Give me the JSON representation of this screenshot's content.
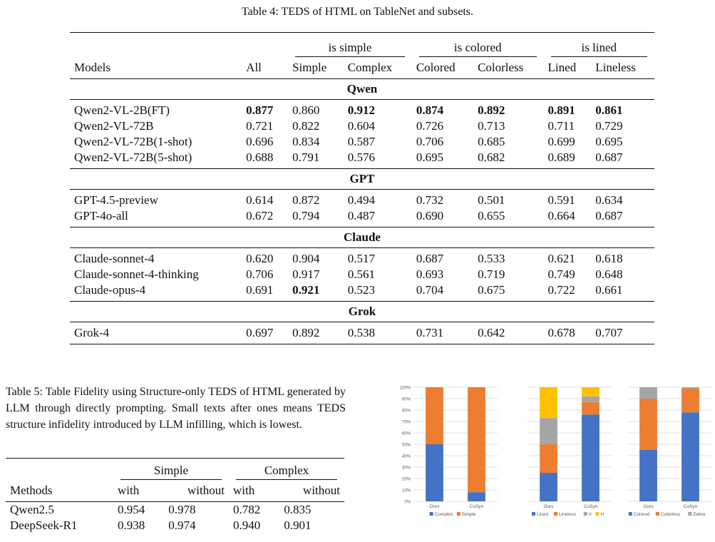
{
  "table4": {
    "caption": "Table 4: TEDS of HTML on TableNet and subsets.",
    "group_headers": [
      "is simple",
      "is colored",
      "is lined"
    ],
    "columns": [
      "Models",
      "All",
      "Simple",
      "Complex",
      "Colored",
      "Colorless",
      "Lined",
      "Lineless"
    ],
    "sections": [
      {
        "name": "Qwen",
        "rows": [
          {
            "model": "Qwen2-VL-2B(FT)",
            "values": [
              "0.877",
              "0.860",
              "0.912",
              "0.874",
              "0.892",
              "0.891",
              "0.861"
            ],
            "bold": [
              true,
              false,
              true,
              true,
              true,
              true,
              true
            ]
          },
          {
            "model": "Qwen2-VL-72B",
            "values": [
              "0.721",
              "0.822",
              "0.604",
              "0.726",
              "0.713",
              "0.711",
              "0.729"
            ],
            "bold": [
              false,
              false,
              false,
              false,
              false,
              false,
              false
            ]
          },
          {
            "model": "Qwen2-VL-72B(1-shot)",
            "values": [
              "0.696",
              "0.834",
              "0.587",
              "0.706",
              "0.685",
              "0.699",
              "0.695"
            ],
            "bold": [
              false,
              false,
              false,
              false,
              false,
              false,
              false
            ]
          },
          {
            "model": "Qwen2-VL-72B(5-shot)",
            "values": [
              "0.688",
              "0.791",
              "0.576",
              "0.695",
              "0.682",
              "0.689",
              "0.687"
            ],
            "bold": [
              false,
              false,
              false,
              false,
              false,
              false,
              false
            ]
          }
        ]
      },
      {
        "name": "GPT",
        "rows": [
          {
            "model": "GPT-4.5-preview",
            "values": [
              "0.614",
              "0.872",
              "0.494",
              "0.732",
              "0.501",
              "0.591",
              "0.634"
            ],
            "bold": [
              false,
              false,
              false,
              false,
              false,
              false,
              false
            ]
          },
          {
            "model": "GPT-4o-all",
            "values": [
              "0.672",
              "0.794",
              "0.487",
              "0.690",
              "0.655",
              "0.664",
              "0.687"
            ],
            "bold": [
              false,
              false,
              false,
              false,
              false,
              false,
              false
            ]
          }
        ]
      },
      {
        "name": "Claude",
        "rows": [
          {
            "model": "Claude-sonnet-4",
            "values": [
              "0.620",
              "0.904",
              "0.517",
              "0.687",
              "0.533",
              "0.621",
              "0.618"
            ],
            "bold": [
              false,
              false,
              false,
              false,
              false,
              false,
              false
            ]
          },
          {
            "model": "Claude-sonnet-4-thinking",
            "values": [
              "0.706",
              "0.917",
              "0.561",
              "0.693",
              "0.719",
              "0.749",
              "0.648"
            ],
            "bold": [
              false,
              false,
              false,
              false,
              false,
              false,
              false
            ]
          },
          {
            "model": "Claude-opus-4",
            "values": [
              "0.691",
              "0.921",
              "0.523",
              "0.704",
              "0.675",
              "0.722",
              "0.661"
            ],
            "bold": [
              false,
              true,
              false,
              false,
              false,
              false,
              false
            ]
          }
        ]
      },
      {
        "name": "Grok",
        "rows": [
          {
            "model": "Grok-4",
            "values": [
              "0.697",
              "0.892",
              "0.538",
              "0.731",
              "0.642",
              "0.678",
              "0.707"
            ],
            "bold": [
              false,
              false,
              false,
              false,
              false,
              false,
              false
            ]
          }
        ]
      }
    ]
  },
  "table5": {
    "caption": "Table 5: Table Fidelity using Structure-only TEDS of HTML generated by LLM through directly prompting. Small texts after ones means TEDS structure infidelity introduced by LLM infilling, which is lowest.",
    "group_headers": [
      "Simple",
      "Complex"
    ],
    "columns": [
      "Methods",
      "with",
      "without",
      "with",
      "without"
    ],
    "rows": [
      {
        "method": "Qwen2.5",
        "values": [
          "0.954",
          "0.978",
          "0.782",
          "0.835"
        ]
      },
      {
        "method": "DeepSeek-R1",
        "values": [
          "0.938",
          "0.974",
          "0.940",
          "0.901"
        ]
      }
    ]
  },
  "chart_data": [
    {
      "type": "bar",
      "stacked": true,
      "categories": [
        "Ours",
        "CoSyn"
      ],
      "ylim": [
        0,
        100
      ],
      "yticks": [
        "0%",
        "10%",
        "20%",
        "30%",
        "40%",
        "50%",
        "60%",
        "70%",
        "80%",
        "90%",
        "100%"
      ],
      "series": [
        {
          "name": "Complex",
          "color": "#4472C4",
          "values": [
            50,
            8
          ]
        },
        {
          "name": "Simple",
          "color": "#ED7D31",
          "values": [
            50,
            92
          ]
        }
      ],
      "legend_position": "bottom"
    },
    {
      "type": "bar",
      "stacked": true,
      "categories": [
        "Ours",
        "CoSyn"
      ],
      "ylim": [
        0,
        100
      ],
      "series": [
        {
          "name": "Lined",
          "color": "#4472C4",
          "values": [
            25,
            76
          ]
        },
        {
          "name": "Lineless",
          "color": "#ED7D31",
          "values": [
            25,
            11
          ]
        },
        {
          "name": "V",
          "color": "#A5A5A5",
          "values": [
            23,
            5
          ]
        },
        {
          "name": "H",
          "color": "#FFC000",
          "values": [
            27,
            8
          ]
        }
      ],
      "legend_position": "bottom"
    },
    {
      "type": "bar",
      "stacked": true,
      "categories": [
        "Ours",
        "CoSyn"
      ],
      "ylim": [
        0,
        100
      ],
      "series": [
        {
          "name": "Colored",
          "color": "#4472C4",
          "values": [
            45,
            78
          ]
        },
        {
          "name": "Colorless",
          "color": "#ED7D31",
          "values": [
            45,
            21
          ]
        },
        {
          "name": "Zebra",
          "color": "#A5A5A5",
          "values": [
            10,
            1
          ]
        }
      ],
      "legend_position": "bottom"
    }
  ]
}
